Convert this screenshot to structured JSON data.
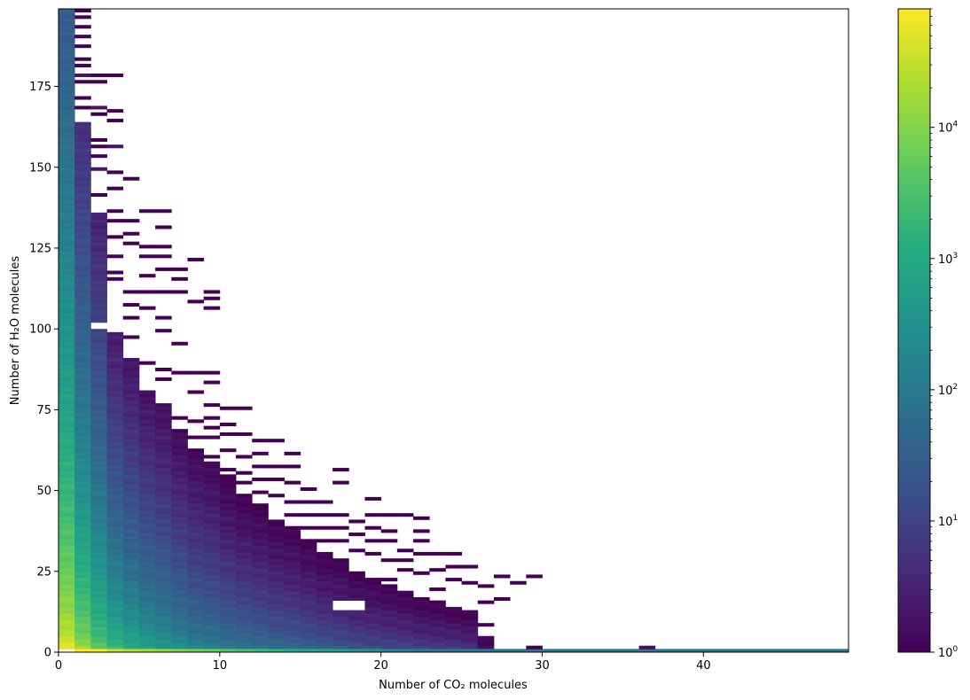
{
  "chart_data": {
    "type": "heatmap",
    "title": "",
    "xlabel": "Number of CO₂ molecules",
    "ylabel": "Number of H₂O molecules",
    "xlim": [
      0,
      49
    ],
    "ylim": [
      0,
      199
    ],
    "x_ticks": [
      {
        "value": 0,
        "label": "0"
      },
      {
        "value": 10,
        "label": "10"
      },
      {
        "value": 20,
        "label": "20"
      },
      {
        "value": 30,
        "label": "30"
      },
      {
        "value": 40,
        "label": "40"
      }
    ],
    "y_ticks": [
      {
        "value": 0,
        "label": "0"
      },
      {
        "value": 25,
        "label": "25"
      },
      {
        "value": 50,
        "label": "50"
      },
      {
        "value": 75,
        "label": "75"
      },
      {
        "value": 100,
        "label": "100"
      },
      {
        "value": 125,
        "label": "125"
      },
      {
        "value": 150,
        "label": "150"
      },
      {
        "value": 175,
        "label": "175"
      }
    ],
    "colorbar": {
      "scale": "log",
      "colormap": "viridis",
      "range": [
        1,
        80000
      ],
      "ticks": [
        {
          "value": 1,
          "label": "10",
          "exp": "0"
        },
        {
          "value": 10,
          "label": "10",
          "exp": "1"
        },
        {
          "value": 100,
          "label": "10",
          "exp": "2"
        },
        {
          "value": 1000,
          "label": "10",
          "exp": "3"
        },
        {
          "value": 10000,
          "label": "10",
          "exp": "4"
        }
      ]
    },
    "bins": {
      "x_bin_width": 1,
      "y_bin_height": 1,
      "columns": [
        {
          "x": 0,
          "ymax": 199,
          "log_peak": 4.9,
          "log_edge": 1.4
        },
        {
          "x": 1,
          "ymax": 163,
          "log_peak": 4.4,
          "log_edge": 0.7
        },
        {
          "x": 2,
          "ymax": 135,
          "log_peak": 3.9,
          "log_edge": 0.5
        },
        {
          "x": 3,
          "ymax": 98,
          "log_peak": 3.6,
          "log_edge": 0.4
        },
        {
          "x": 4,
          "ymax": 90,
          "log_peak": 3.3,
          "log_edge": 0.3
        },
        {
          "x": 5,
          "ymax": 80,
          "log_peak": 3.1,
          "log_edge": 0.25
        },
        {
          "x": 6,
          "ymax": 76,
          "log_peak": 2.9,
          "log_edge": 0.2
        },
        {
          "x": 7,
          "ymax": 68,
          "log_peak": 2.7,
          "log_edge": 0.15
        },
        {
          "x": 8,
          "ymax": 62,
          "log_peak": 2.5,
          "log_edge": 0.1
        },
        {
          "x": 9,
          "ymax": 58,
          "log_peak": 2.4,
          "log_edge": 0.1
        },
        {
          "x": 10,
          "ymax": 54,
          "log_peak": 2.3,
          "log_edge": 0.0
        },
        {
          "x": 11,
          "ymax": 48,
          "log_peak": 2.2,
          "log_edge": 0.0
        },
        {
          "x": 12,
          "ymax": 45,
          "log_peak": 2.1,
          "log_edge": 0.0
        },
        {
          "x": 13,
          "ymax": 40,
          "log_peak": 2.0,
          "log_edge": 0.0
        },
        {
          "x": 14,
          "ymax": 38,
          "log_peak": 1.9,
          "log_edge": 0.0
        },
        {
          "x": 15,
          "ymax": 34,
          "log_peak": 1.8,
          "log_edge": 0.0
        },
        {
          "x": 16,
          "ymax": 30,
          "log_peak": 1.7,
          "log_edge": 0.0
        },
        {
          "x": 17,
          "ymax": 28,
          "log_peak": 1.6,
          "log_edge": 0.0
        },
        {
          "x": 18,
          "ymax": 24,
          "log_peak": 1.5,
          "log_edge": 0.0
        },
        {
          "x": 19,
          "ymax": 22,
          "log_peak": 1.45,
          "log_edge": 0.0
        },
        {
          "x": 20,
          "ymax": 20,
          "log_peak": 1.4,
          "log_edge": 0.0
        },
        {
          "x": 21,
          "ymax": 18,
          "log_peak": 1.3,
          "log_edge": 0.0
        },
        {
          "x": 22,
          "ymax": 16,
          "log_peak": 1.2,
          "log_edge": 0.0
        },
        {
          "x": 23,
          "ymax": 15,
          "log_peak": 1.15,
          "log_edge": 0.0
        },
        {
          "x": 24,
          "ymax": 13,
          "log_peak": 1.1,
          "log_edge": 0.0
        },
        {
          "x": 25,
          "ymax": 12,
          "log_peak": 1.0,
          "log_edge": 0.0
        },
        {
          "x": 26,
          "ymax": 4,
          "log_peak": 0.4,
          "log_edge": 0.0
        }
      ],
      "bottom_row": {
        "y": 0,
        "x_from": 0,
        "x_to": 49,
        "log_start": 4.9,
        "log_end": 2.0
      },
      "scatter_cells": [
        [
          1,
          198,
          0
        ],
        [
          1,
          196,
          0
        ],
        [
          1,
          193,
          0
        ],
        [
          1,
          190,
          0
        ],
        [
          1,
          187,
          0
        ],
        [
          1,
          183,
          0
        ],
        [
          1,
          181,
          0
        ],
        [
          1,
          178,
          0.3
        ],
        [
          1,
          176,
          0
        ],
        [
          1,
          171,
          0
        ],
        [
          1,
          168,
          0
        ],
        [
          2,
          178,
          0
        ],
        [
          2,
          176,
          0
        ],
        [
          2,
          168,
          0.3
        ],
        [
          2,
          166,
          0
        ],
        [
          2,
          158,
          0
        ],
        [
          2,
          156,
          0
        ],
        [
          2,
          153,
          0
        ],
        [
          2,
          149,
          0.3
        ],
        [
          2,
          141,
          0
        ],
        [
          3,
          178,
          0
        ],
        [
          3,
          167,
          0
        ],
        [
          3,
          164,
          0
        ],
        [
          3,
          156,
          0.3
        ],
        [
          3,
          148,
          0
        ],
        [
          3,
          143,
          0
        ],
        [
          3,
          136,
          0
        ],
        [
          3,
          133,
          0
        ],
        [
          3,
          128,
          0
        ],
        [
          3,
          122,
          0
        ],
        [
          3,
          117,
          0
        ],
        [
          3,
          115,
          0
        ],
        [
          4,
          146,
          0
        ],
        [
          4,
          133,
          0
        ],
        [
          4,
          129,
          0
        ],
        [
          4,
          126,
          0
        ],
        [
          4,
          111,
          0
        ],
        [
          4,
          107,
          0
        ],
        [
          4,
          103,
          0
        ],
        [
          4,
          97,
          0
        ],
        [
          5,
          136,
          0
        ],
        [
          5,
          125,
          0
        ],
        [
          5,
          122,
          0
        ],
        [
          5,
          116,
          0
        ],
        [
          5,
          111,
          0
        ],
        [
          5,
          106,
          0
        ],
        [
          5,
          89,
          0
        ],
        [
          6,
          136,
          0
        ],
        [
          6,
          131,
          0
        ],
        [
          6,
          125,
          0
        ],
        [
          6,
          122,
          0
        ],
        [
          6,
          118,
          0
        ],
        [
          6,
          111,
          0
        ],
        [
          6,
          103,
          0
        ],
        [
          6,
          99,
          0
        ],
        [
          6,
          87,
          0
        ],
        [
          6,
          84,
          0
        ],
        [
          7,
          118,
          0
        ],
        [
          7,
          115,
          0
        ],
        [
          7,
          111,
          0
        ],
        [
          7,
          95,
          0
        ],
        [
          7,
          86,
          0
        ],
        [
          7,
          72,
          0
        ],
        [
          7,
          68,
          0
        ],
        [
          8,
          121,
          0
        ],
        [
          8,
          108,
          0
        ],
        [
          8,
          86,
          0
        ],
        [
          8,
          80,
          0
        ],
        [
          8,
          71,
          0
        ],
        [
          8,
          66,
          0
        ],
        [
          9,
          111,
          0
        ],
        [
          9,
          109,
          0
        ],
        [
          9,
          106,
          0
        ],
        [
          9,
          86,
          0
        ],
        [
          9,
          83,
          0
        ],
        [
          9,
          76,
          0
        ],
        [
          9,
          72,
          0
        ],
        [
          9,
          69,
          0
        ],
        [
          9,
          66,
          0
        ],
        [
          9,
          60,
          0
        ],
        [
          10,
          75,
          0
        ],
        [
          10,
          70,
          0
        ],
        [
          10,
          67,
          0
        ],
        [
          10,
          62,
          0
        ],
        [
          10,
          56,
          0
        ],
        [
          11,
          75,
          0
        ],
        [
          11,
          67,
          0
        ],
        [
          11,
          60,
          0
        ],
        [
          11,
          55,
          0
        ],
        [
          11,
          52,
          0
        ],
        [
          12,
          65,
          0
        ],
        [
          12,
          61,
          0
        ],
        [
          12,
          57,
          0
        ],
        [
          12,
          53,
          0
        ],
        [
          12,
          49,
          0
        ],
        [
          13,
          65,
          0
        ],
        [
          13,
          57,
          0
        ],
        [
          13,
          53,
          0
        ],
        [
          13,
          48,
          0
        ],
        [
          14,
          61,
          0
        ],
        [
          14,
          57,
          0
        ],
        [
          14,
          52,
          0
        ],
        [
          14,
          46,
          0
        ],
        [
          14,
          42,
          0
        ],
        [
          15,
          50,
          0
        ],
        [
          15,
          46,
          0
        ],
        [
          15,
          42,
          0
        ],
        [
          15,
          38,
          0
        ],
        [
          16,
          46,
          0
        ],
        [
          16,
          42,
          0
        ],
        [
          16,
          38,
          0
        ],
        [
          16,
          34,
          0
        ],
        [
          17,
          56,
          0
        ],
        [
          17,
          52,
          0
        ],
        [
          17,
          42,
          0
        ],
        [
          17,
          38,
          0
        ],
        [
          17,
          34,
          0
        ],
        [
          18,
          40,
          0
        ],
        [
          18,
          36,
          0
        ],
        [
          18,
          31,
          0
        ],
        [
          19,
          47,
          0
        ],
        [
          19,
          42,
          0
        ],
        [
          19,
          38,
          0
        ],
        [
          19,
          34,
          0
        ],
        [
          19,
          30,
          0
        ],
        [
          20,
          42,
          0
        ],
        [
          20,
          37,
          0
        ],
        [
          20,
          34,
          0
        ],
        [
          20,
          28,
          0
        ],
        [
          20,
          22,
          0
        ],
        [
          21,
          42,
          0
        ],
        [
          21,
          31,
          0
        ],
        [
          21,
          28,
          0
        ],
        [
          21,
          25,
          0
        ],
        [
          22,
          41,
          0
        ],
        [
          22,
          37,
          0
        ],
        [
          22,
          34,
          0
        ],
        [
          22,
          30,
          0
        ],
        [
          22,
          24,
          0
        ],
        [
          23,
          30,
          0
        ],
        [
          23,
          25,
          0
        ],
        [
          23,
          19,
          0
        ],
        [
          24,
          30,
          0
        ],
        [
          24,
          26,
          0
        ],
        [
          24,
          22,
          0
        ],
        [
          25,
          26,
          0
        ],
        [
          25,
          21,
          0
        ],
        [
          26,
          20,
          0
        ],
        [
          26,
          15,
          0
        ],
        [
          26,
          8,
          0
        ],
        [
          27,
          23,
          0
        ],
        [
          27,
          16,
          0
        ],
        [
          28,
          21,
          0
        ],
        [
          29,
          23,
          0
        ],
        [
          29,
          1,
          0
        ],
        [
          36,
          1,
          0.2
        ]
      ],
      "empty_cells": [
        [
          17,
          13
        ],
        [
          17,
          14
        ],
        [
          17,
          15
        ],
        [
          18,
          13
        ],
        [
          18,
          14
        ],
        [
          18,
          15
        ],
        [
          2,
          100
        ],
        [
          2,
          101
        ],
        [
          0,
          0
        ]
      ]
    }
  }
}
